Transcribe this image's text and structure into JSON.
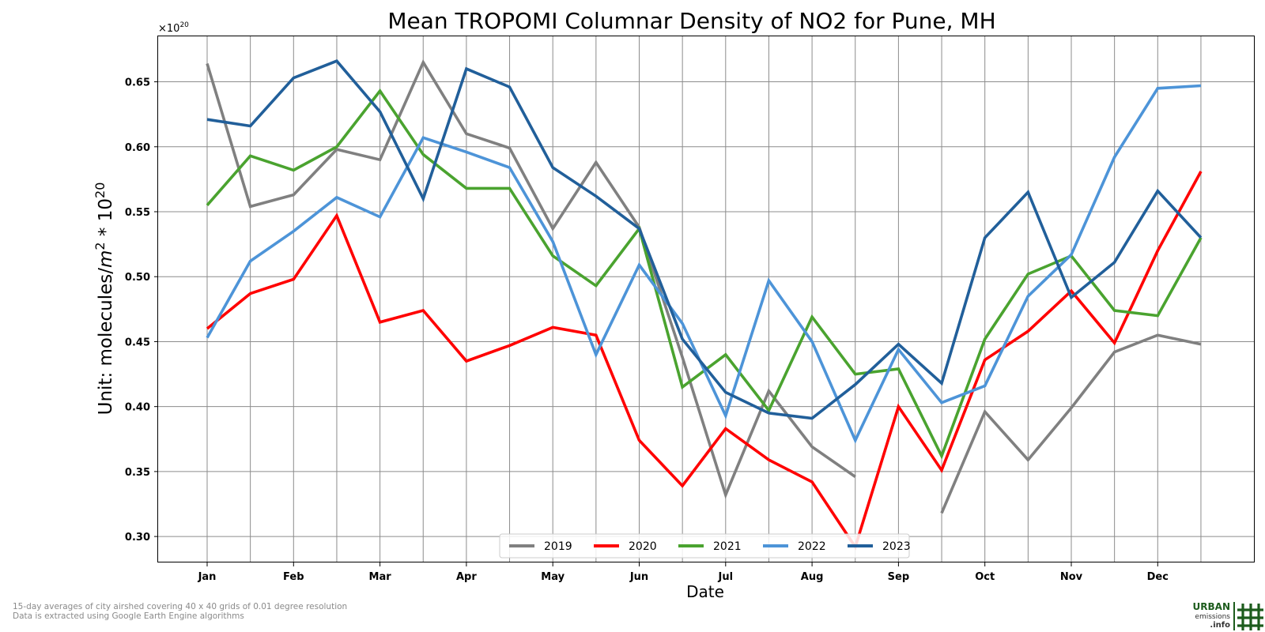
{
  "chart_data": {
    "type": "line",
    "title": "Mean TROPOMI Columnar Density of NO2 for Pune, MH",
    "xlabel": "Date",
    "ylabel": "Unit: molecules/m² * 10²⁰",
    "ylabel_parts": {
      "prefix": "Unit: molecules/",
      "m": "m",
      "exp1": "2",
      "mid": " * 10",
      "exp2": "20"
    },
    "offset_text": {
      "base": "×10",
      "exp": "20"
    },
    "categories": [
      "Jan",
      "",
      "Feb",
      "",
      "Mar",
      "",
      "Apr",
      "",
      "May",
      "",
      "Jun",
      "",
      "Jul",
      "",
      "Aug",
      "",
      "Sep",
      "",
      "Oct",
      "",
      "Nov",
      "",
      "Dec",
      ""
    ],
    "x_tick_labels": [
      "Jan",
      "Feb",
      "Mar",
      "Apr",
      "May",
      "Jun",
      "Jul",
      "Aug",
      "Sep",
      "Oct",
      "Nov",
      "Dec"
    ],
    "y_ticks": [
      "0.30",
      "0.35",
      "0.40",
      "0.45",
      "0.50",
      "0.55",
      "0.60",
      "0.65"
    ],
    "ylim": [
      0.28,
      0.685
    ],
    "grid": true,
    "legend_position": "bottom-center",
    "series": [
      {
        "name": "2019",
        "color": "#808080",
        "values": [
          0.664,
          0.554,
          0.563,
          0.598,
          0.59,
          0.665,
          0.61,
          0.599,
          0.537,
          0.588,
          0.538,
          0.438,
          0.332,
          0.412,
          0.369,
          0.346,
          null,
          0.318,
          0.396,
          0.359,
          0.399,
          0.442,
          0.455,
          0.448
        ]
      },
      {
        "name": "2020",
        "color": "#ff0000",
        "values": [
          0.46,
          0.487,
          0.498,
          0.547,
          0.465,
          0.474,
          0.435,
          0.447,
          0.461,
          0.455,
          0.374,
          0.339,
          0.383,
          0.359,
          0.342,
          0.292,
          0.4,
          0.351,
          0.436,
          0.458,
          0.489,
          0.449,
          0.52,
          0.581
        ]
      },
      {
        "name": "2021",
        "color": "#4aa32f",
        "values": [
          0.555,
          0.593,
          0.582,
          0.6,
          0.643,
          0.594,
          0.568,
          0.568,
          0.516,
          0.493,
          0.537,
          0.415,
          0.44,
          0.397,
          0.469,
          0.425,
          0.429,
          0.362,
          0.452,
          0.502,
          0.516,
          0.474,
          0.47,
          0.53
        ]
      },
      {
        "name": "2022",
        "color": "#4d94d8",
        "values": [
          0.453,
          0.512,
          0.535,
          0.561,
          0.546,
          0.607,
          0.596,
          0.584,
          0.527,
          0.44,
          0.509,
          0.464,
          0.393,
          0.497,
          0.45,
          0.374,
          0.444,
          0.403,
          0.416,
          0.485,
          0.517,
          0.592,
          0.645,
          0.647
        ]
      },
      {
        "name": "2023",
        "color": "#215f9a",
        "values": [
          0.621,
          0.616,
          0.653,
          0.666,
          0.627,
          0.56,
          0.66,
          0.646,
          0.584,
          0.562,
          0.537,
          0.452,
          0.411,
          0.395,
          0.391,
          0.417,
          0.448,
          0.418,
          0.53,
          0.565,
          0.484,
          0.511,
          0.566,
          0.53
        ]
      }
    ]
  },
  "footnotes": [
    "15-day averages of city airshed covering 40 x 40 grids of 0.01 degree resolution",
    "Data is extracted using Google Earth Engine algorithms"
  ],
  "logo": {
    "line1": "URBAN",
    "line2": "emissions",
    "line3": ".info",
    "color": "#1d5c1d"
  }
}
